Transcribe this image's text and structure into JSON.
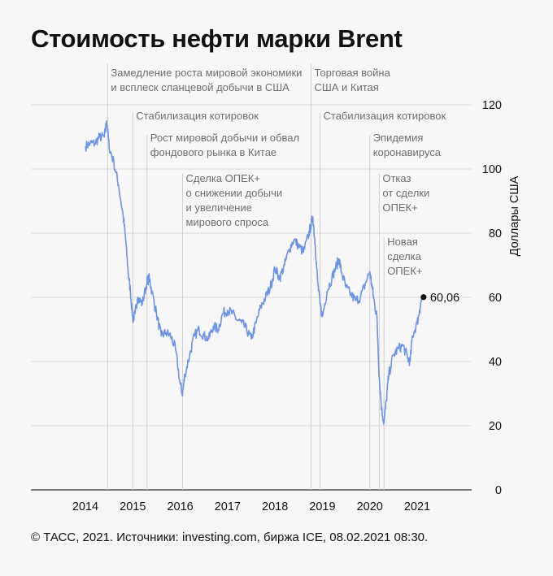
{
  "title": "Стоимость нефти марки Brent",
  "footer": "© ТАСС, 2021. Источники: investing.com, биржа ICE, 08.02.2021 08:30.",
  "chart_data": {
    "type": "line",
    "ylabel": "Доллары США",
    "ylim": [
      0,
      120
    ],
    "yticks": [
      "0",
      "20",
      "40",
      "60",
      "80",
      "100",
      "120"
    ],
    "xlim": [
      2014,
      2022.1
    ],
    "xticks": [
      "2014",
      "2015",
      "2016",
      "2017",
      "2018",
      "2019",
      "2020",
      "2021"
    ],
    "grid": true,
    "line_color": "#6a93ea",
    "last_value_label": "60,06",
    "series": [
      {
        "x": [
          2014.0,
          2014.1,
          2014.2,
          2014.3,
          2014.4,
          2014.45,
          2014.5,
          2014.6,
          2014.7,
          2014.8,
          2014.85,
          2014.9,
          2014.95,
          2015.0,
          2015.05,
          2015.1,
          2015.2,
          2015.3,
          2015.35,
          2015.4,
          2015.5,
          2015.6,
          2015.7,
          2015.8,
          2015.9,
          2016.0,
          2016.05,
          2016.1,
          2016.2,
          2016.3,
          2016.4,
          2016.5,
          2016.6,
          2016.7,
          2016.8,
          2016.9,
          2017.0,
          2017.1,
          2017.2,
          2017.3,
          2017.4,
          2017.5,
          2017.6,
          2017.7,
          2017.8,
          2017.9,
          2018.0,
          2018.1,
          2018.2,
          2018.3,
          2018.4,
          2018.5,
          2018.6,
          2018.7,
          2018.75,
          2018.8,
          2018.85,
          2018.9,
          2018.95,
          2019.0,
          2019.1,
          2019.2,
          2019.3,
          2019.35,
          2019.4,
          2019.5,
          2019.6,
          2019.7,
          2019.8,
          2019.9,
          2020.0,
          2020.05,
          2020.1,
          2020.15,
          2020.2,
          2020.25,
          2020.3,
          2020.35,
          2020.4,
          2020.5,
          2020.6,
          2020.7,
          2020.8,
          2020.85,
          2020.9,
          2021.0,
          2021.05,
          2021.1
        ],
        "y": [
          107,
          108,
          108,
          110,
          110,
          115,
          107,
          102,
          95,
          85,
          78,
          68,
          62,
          53,
          55,
          60,
          58,
          65,
          66,
          62,
          55,
          48,
          49,
          48,
          44,
          33,
          30,
          36,
          42,
          48,
          50,
          48,
          47,
          51,
          50,
          55,
          56,
          55,
          53,
          52,
          50,
          47,
          52,
          57,
          60,
          63,
          69,
          66,
          70,
          75,
          78,
          76,
          74,
          79,
          82,
          85,
          76,
          65,
          58,
          54,
          62,
          66,
          70,
          72,
          68,
          63,
          61,
          59,
          60,
          64,
          68,
          63,
          58,
          54,
          35,
          25,
          21,
          28,
          36,
          42,
          44,
          45,
          41,
          40,
          48,
          52,
          56,
          60.06
        ]
      }
    ],
    "annotations": [
      {
        "x": 2014.47,
        "lines": [
          "Замедление роста мировой экономики",
          "и всплеск сланцевой добычи в США"
        ]
      },
      {
        "x": 2015.0,
        "lines": [
          "Стабилизация котировок"
        ]
      },
      {
        "x": 2015.3,
        "lines": [
          "Рост мировой добычи и обвал",
          "фондового рынка в Китае"
        ]
      },
      {
        "x": 2016.05,
        "lines": [
          "Сделка ОПЕК+",
          "о снижении добычи",
          "и увеличение",
          "мирового спроса"
        ]
      },
      {
        "x": 2018.76,
        "lines": [
          "Торговая война",
          "США и Китая"
        ]
      },
      {
        "x": 2018.95,
        "lines": [
          "Стабилизация котировок"
        ]
      },
      {
        "x": 2020.0,
        "lines": [
          "Эпидемия",
          "коронавируса"
        ]
      },
      {
        "x": 2020.2,
        "lines": [
          "Отказ",
          "от сделки",
          "ОПЕК+"
        ]
      },
      {
        "x": 2020.3,
        "lines": [
          "Новая",
          "сделка",
          "ОПЕК+"
        ]
      }
    ]
  }
}
